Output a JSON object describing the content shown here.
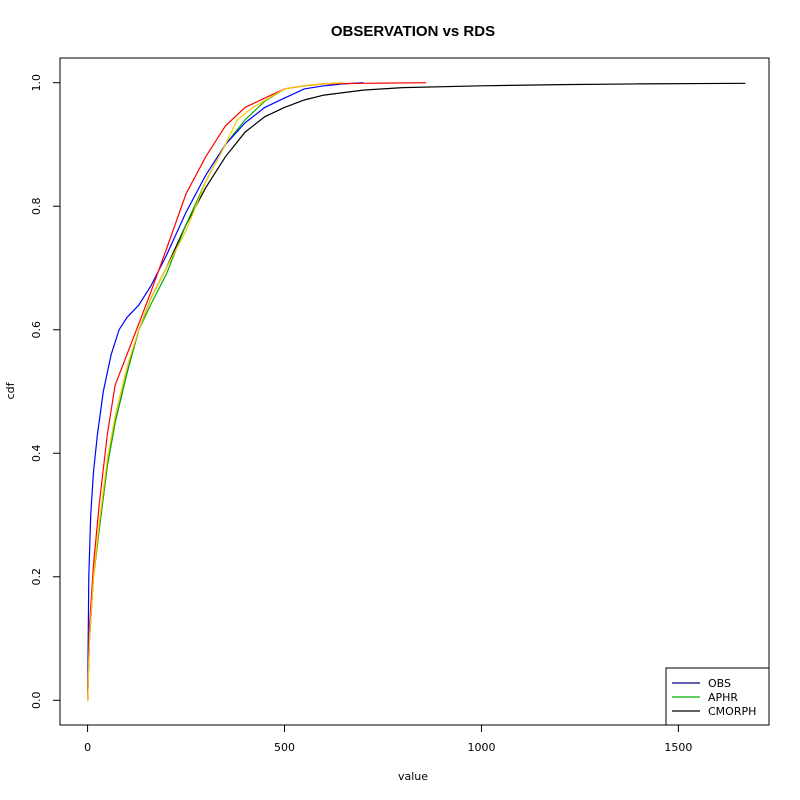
{
  "chart_data": {
    "type": "line",
    "title": "OBSERVATION vs RDS",
    "xlabel": "value",
    "ylabel": "cdf",
    "xlim": [
      -70,
      1730
    ],
    "ylim": [
      -0.04,
      1.04
    ],
    "xticks": [
      0,
      500,
      1000,
      1500
    ],
    "yticks": [
      0.0,
      0.2,
      0.4,
      0.6,
      0.8,
      1.0
    ],
    "grid": false,
    "legend_position": "bottom-right",
    "legend": [
      {
        "label": "OBS",
        "color": "#000080"
      },
      {
        "label": "APHR",
        "color": "#00b000"
      },
      {
        "label": "CMORPH",
        "color": "#000000"
      }
    ],
    "series": [
      {
        "color": "#000000",
        "x": [
          0,
          5,
          15,
          30,
          50,
          70,
          100,
          130,
          160,
          200,
          250,
          300,
          350,
          400,
          450,
          500,
          550,
          600,
          700,
          800,
          1000,
          1200,
          1400,
          1670
        ],
        "y": [
          0.0,
          0.1,
          0.2,
          0.28,
          0.38,
          0.45,
          0.53,
          0.6,
          0.65,
          0.7,
          0.77,
          0.83,
          0.88,
          0.92,
          0.945,
          0.96,
          0.972,
          0.98,
          0.988,
          0.992,
          0.995,
          0.997,
          0.998,
          0.999
        ]
      },
      {
        "color": "#00b000",
        "x": [
          0,
          5,
          15,
          30,
          50,
          70,
          100,
          130,
          160,
          200,
          250,
          300,
          350,
          400,
          450,
          500,
          550,
          600,
          650
        ],
        "y": [
          0.0,
          0.1,
          0.2,
          0.28,
          0.38,
          0.45,
          0.53,
          0.6,
          0.64,
          0.69,
          0.77,
          0.84,
          0.9,
          0.94,
          0.97,
          0.99,
          0.995,
          0.998,
          1.0
        ]
      },
      {
        "color": "#0000ff",
        "x": [
          0,
          3,
          8,
          15,
          25,
          40,
          60,
          80,
          100,
          130,
          160,
          200,
          250,
          300,
          350,
          400,
          450,
          500,
          550,
          600,
          650,
          700
        ],
        "y": [
          0.0,
          0.2,
          0.3,
          0.37,
          0.43,
          0.5,
          0.56,
          0.6,
          0.62,
          0.64,
          0.67,
          0.72,
          0.79,
          0.85,
          0.9,
          0.935,
          0.96,
          0.975,
          0.99,
          0.995,
          0.998,
          1.0
        ]
      },
      {
        "color": "#ff0000",
        "x": [
          0,
          5,
          15,
          30,
          50,
          70,
          100,
          130,
          160,
          200,
          250,
          300,
          350,
          400,
          450,
          500,
          550,
          600,
          700,
          860
        ],
        "y": [
          0.0,
          0.12,
          0.22,
          0.32,
          0.43,
          0.51,
          0.56,
          0.61,
          0.66,
          0.73,
          0.82,
          0.88,
          0.93,
          0.96,
          0.975,
          0.99,
          0.995,
          0.998,
          0.999,
          1.0
        ]
      },
      {
        "color": "#ffc800",
        "x": [
          0,
          5,
          15,
          30,
          50,
          70,
          100,
          130,
          160,
          200,
          250,
          300,
          350,
          380,
          420,
          460,
          500,
          550,
          600,
          650
        ],
        "y": [
          0.0,
          0.1,
          0.2,
          0.29,
          0.39,
          0.46,
          0.54,
          0.6,
          0.65,
          0.7,
          0.76,
          0.84,
          0.9,
          0.94,
          0.96,
          0.975,
          0.99,
          0.995,
          0.998,
          1.0
        ]
      }
    ]
  }
}
